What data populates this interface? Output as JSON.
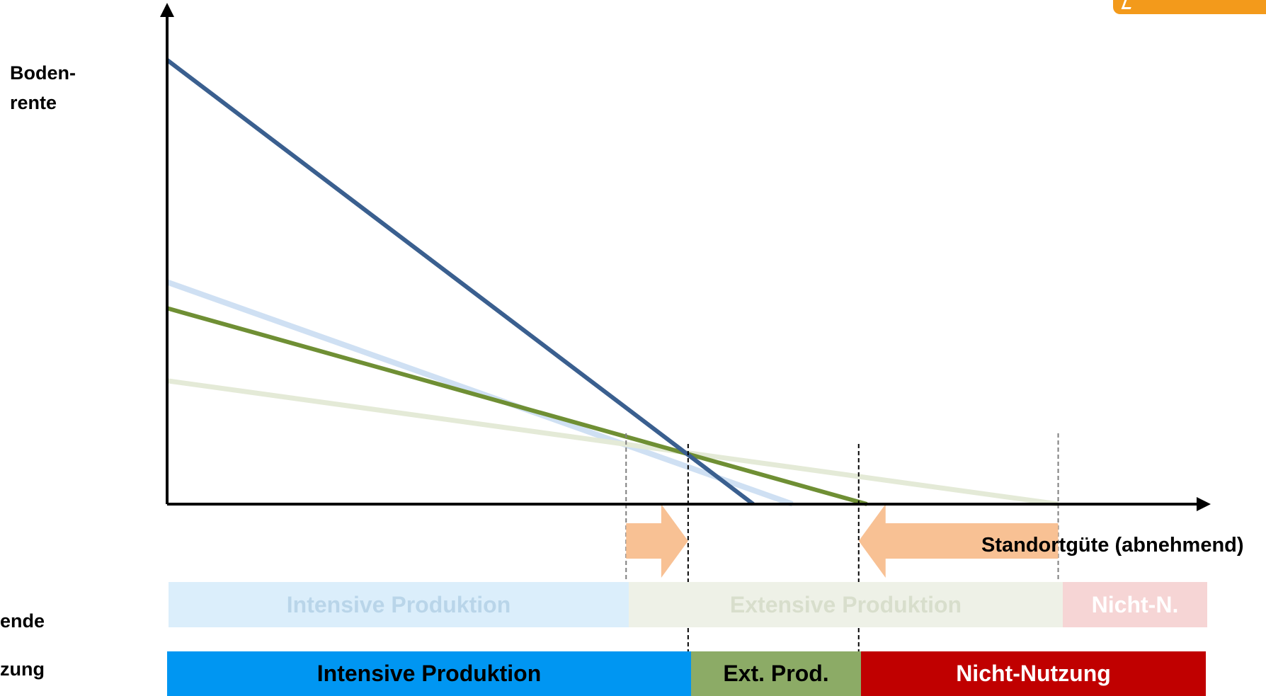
{
  "axes": {
    "y_label": "Boden-\nrente",
    "x_label": "Standortgüte (abnehmend)"
  },
  "row_labels": {
    "original": "ende",
    "new": "zung"
  },
  "bands_original": {
    "intensive": "Intensive Produktion",
    "extensive": "Extensive Produktion",
    "nicht": "Nicht-N."
  },
  "bands_new": {
    "intensive": "Intensive Produktion",
    "extensive": "Ext. Prod.",
    "nicht": "Nicht-Nutzung"
  },
  "colors": {
    "axis": "#000000",
    "intensive_line": "#3a5f8f",
    "intensive_line_old": "#cfe0f3",
    "extensive_line": "#6f8f34",
    "extensive_line_old": "#e4ead7",
    "shift_arrow": "#f8c194",
    "guide_line_old": "#7f7f7f",
    "guide_line_new": "#000000",
    "logo": "#f39a1b"
  },
  "chart_data": {
    "type": "line",
    "xlim": [
      0,
      1
    ],
    "ylim": [
      0,
      1
    ],
    "series": [
      {
        "role": "intensive-new",
        "points": [
          [
            0,
            0.9
          ],
          [
            0.567,
            0
          ]
        ]
      },
      {
        "role": "intensive-old",
        "points": [
          [
            0,
            0.45
          ],
          [
            0.605,
            0
          ]
        ]
      },
      {
        "role": "extensive-new",
        "points": [
          [
            0,
            0.397
          ],
          [
            0.677,
            0
          ]
        ]
      },
      {
        "role": "extensive-old",
        "points": [
          [
            0,
            0.25
          ],
          [
            0.862,
            0
          ]
        ]
      }
    ],
    "guides": [
      {
        "role": "old-boundary-intensive",
        "x": 0.444,
        "style": "old"
      },
      {
        "role": "new-boundary-intensive",
        "x": 0.504,
        "style": "new"
      },
      {
        "role": "new-boundary-extensive",
        "x": 0.669,
        "style": "new"
      },
      {
        "role": "old-boundary-extensive",
        "x": 0.862,
        "style": "old"
      }
    ],
    "shifts": [
      {
        "role": "intensive-boundary-shift",
        "from": 0.444,
        "to": 0.504
      },
      {
        "role": "extensive-boundary-shift",
        "from": 0.862,
        "to": 0.669
      }
    ]
  }
}
